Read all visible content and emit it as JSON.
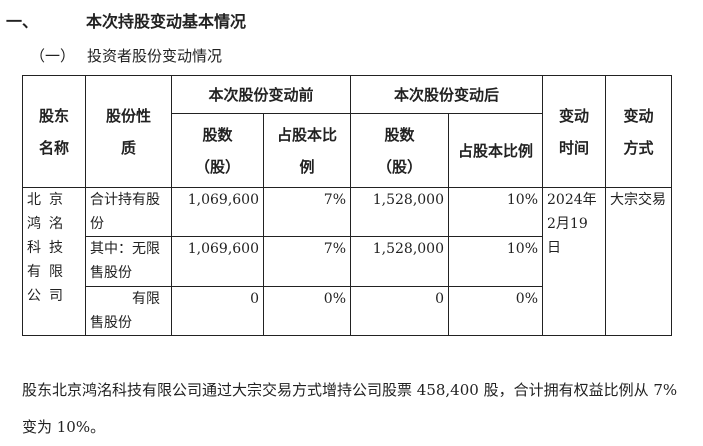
{
  "heading1": {
    "number": "一、",
    "text": "本次持股变动基本情况"
  },
  "heading2": {
    "number": "（一）",
    "text": "投资者股份变动情况"
  },
  "table": {
    "headers": {
      "holder": "股东名称",
      "nature": "股份性质",
      "before": "本次股份变动前",
      "after": "本次股份变动后",
      "shares": "股数（股）",
      "ratio": "占股本比例",
      "time": "变动时间",
      "method": "变动方式"
    },
    "holder": "北京鸿洺科技有限公司",
    "time": "2024年2月19日",
    "method": "大宗交易",
    "rows": [
      {
        "nature": "合计持有股份",
        "before_shares": "1,069,600",
        "before_ratio": "7%",
        "after_shares": "1,528,000",
        "after_ratio": "10%"
      },
      {
        "nature": "其中：无限售股份",
        "before_shares": "1,069,600",
        "before_ratio": "7%",
        "after_shares": "1,528,000",
        "after_ratio": "10%"
      },
      {
        "nature": "有限售股份",
        "before_shares": "0",
        "before_ratio": "0%",
        "after_shares": "0",
        "after_ratio": "0%"
      }
    ]
  },
  "paragraph": "股东北京鸿洺科技有限公司通过大宗交易方式增持公司股票 458,400 股，合计拥有权益比例从 7%变为 10%。"
}
